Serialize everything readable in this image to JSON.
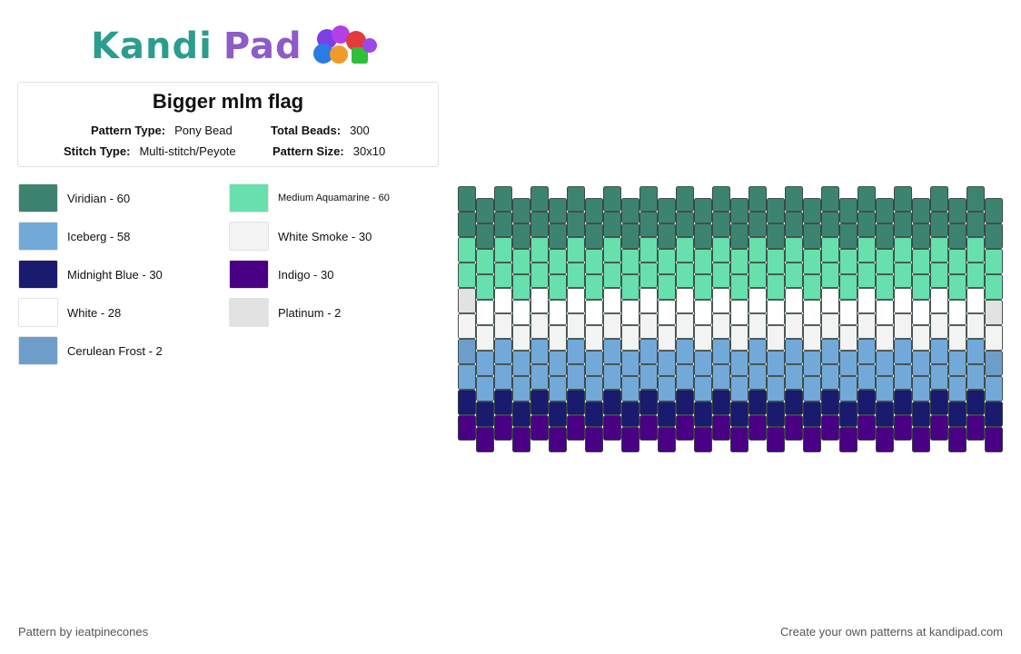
{
  "logo": {
    "text_a": "Kandi",
    "text_b": "Pad",
    "alt": "beads-logo"
  },
  "pattern": {
    "title": "Bigger mlm flag",
    "type_label": "Pattern Type:",
    "type_value": "Pony Bead",
    "total_label": "Total Beads:",
    "total_value": "300",
    "stitch_label": "Stitch Type:",
    "stitch_value": "Multi-stitch/Peyote",
    "size_label": "Pattern Size:",
    "size_value": "30x10"
  },
  "legend": [
    {
      "label": "Viridian - 60",
      "color": "#3d8470"
    },
    {
      "label": "Medium Aquamarine - 60",
      "color": "#67e0ad"
    },
    {
      "label": "Iceberg - 58",
      "color": "#72a9d8"
    },
    {
      "label": "White Smoke - 30",
      "color": "#f3f3f3"
    },
    {
      "label": "Midnight Blue - 30",
      "color": "#1a1a6e"
    },
    {
      "label": "Indigo - 30",
      "color": "#4a0084"
    },
    {
      "label": "White - 28",
      "color": "#ffffff"
    },
    {
      "label": "Platinum - 2",
      "color": "#e2e2e2"
    },
    {
      "label": "Cerulean Frost - 2",
      "color": "#6d9ec9"
    }
  ],
  "bead_grid": {
    "columns": 30,
    "rows": 10,
    "row_colors": [
      "#3d8470",
      "#3d8470",
      "#67e0ad",
      "#67e0ad",
      "#ffffff",
      "#f3f3f3",
      "#72a9d8",
      "#72a9d8",
      "#1a1a6e",
      "#4a0084"
    ],
    "special_beads": [
      {
        "col": 0,
        "row": 4,
        "color": "#e2e2e2"
      },
      {
        "col": 29,
        "row": 4,
        "color": "#e2e2e2"
      },
      {
        "col": 0,
        "row": 6,
        "color": "#6d9ec9"
      },
      {
        "col": 29,
        "row": 6,
        "color": "#6d9ec9"
      }
    ]
  },
  "footer": {
    "credit": "Pattern by ieatpinecones",
    "cta": "Create your own patterns at kandipad.com"
  }
}
